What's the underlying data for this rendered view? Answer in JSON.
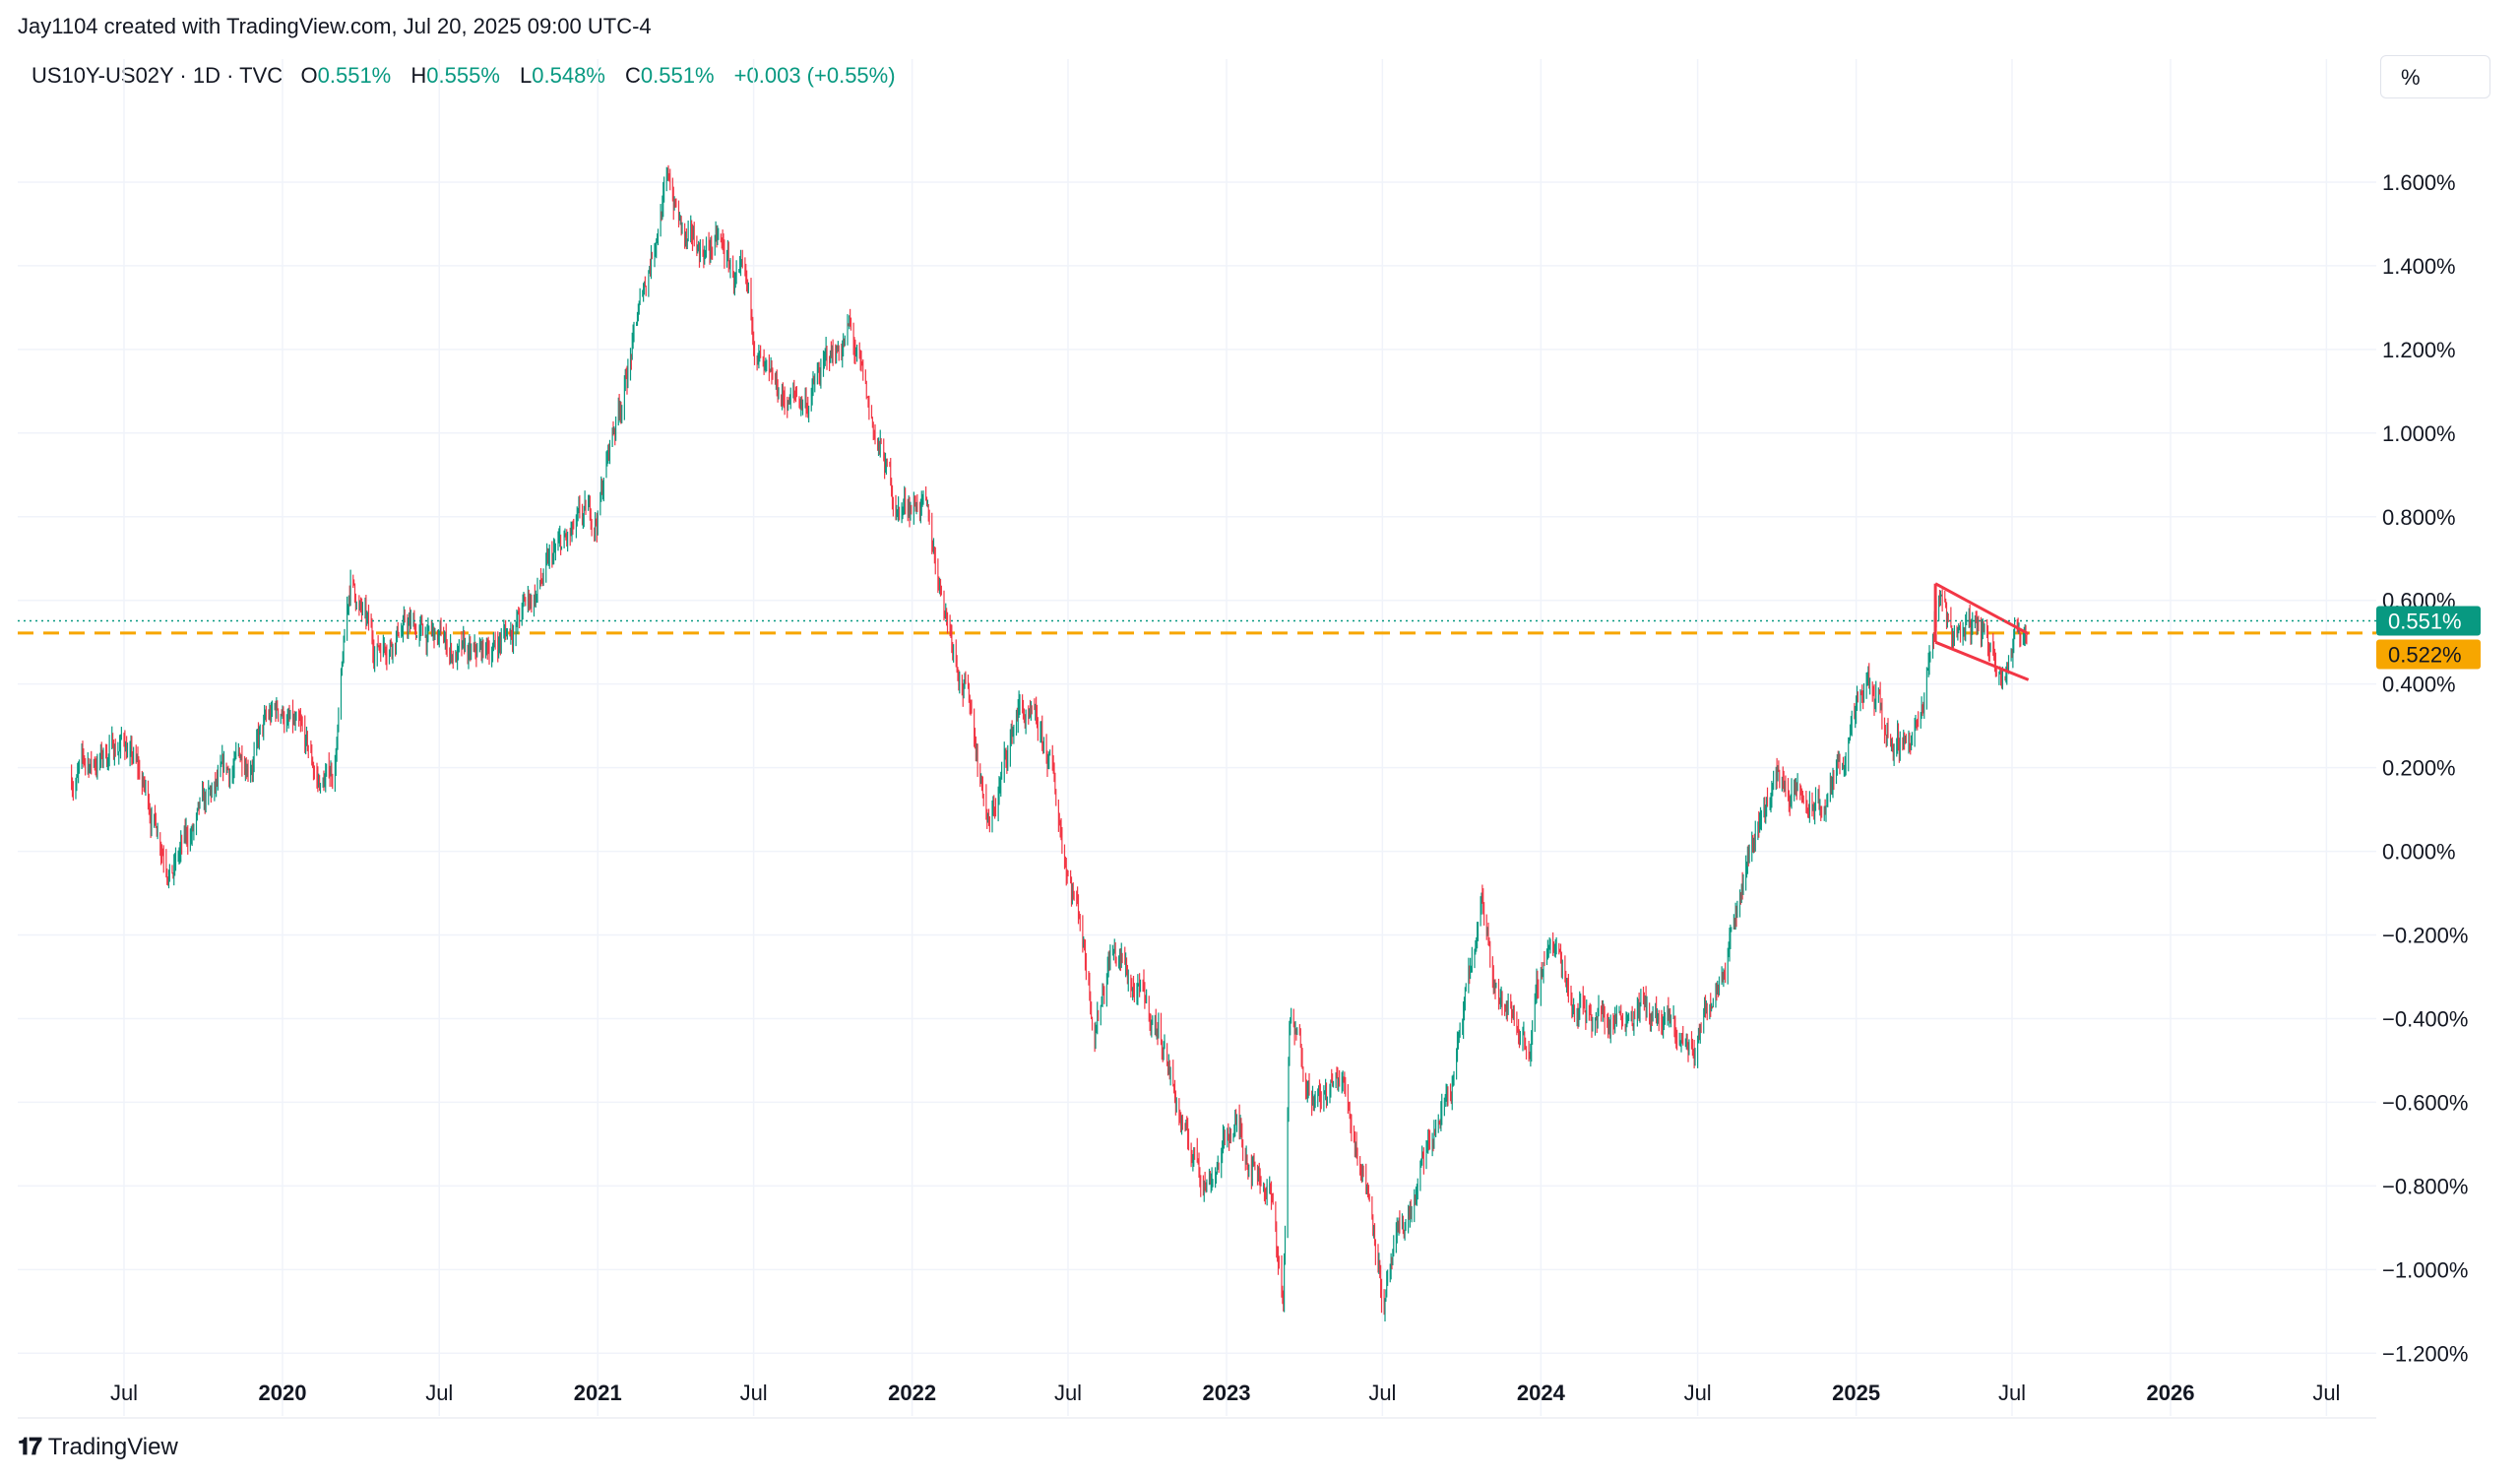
{
  "header": {
    "credit": "Jay1104 created with TradingView.com, Jul 20, 2025 09:00 UTC-4"
  },
  "legend": {
    "symbol": "US10Y-US02Y · 1D · TVC",
    "o_label": "O",
    "o_value": "0.551%",
    "h_label": "H",
    "h_value": "0.555%",
    "l_label": "L",
    "l_value": "0.548%",
    "c_label": "C",
    "c_value": "0.551%",
    "change": "+0.003 (+0.55%)"
  },
  "scale_button": {
    "label": "%"
  },
  "footer": {
    "brand": "TradingView"
  },
  "colors": {
    "up": "#089981",
    "down": "#f23645",
    "grid": "#f0f3fa",
    "dashed_level": "#f7a600",
    "pattern_lines": "#f23645"
  },
  "chart_data": {
    "type": "candlestick",
    "symbol": "US10Y-US02Y",
    "unit": "%",
    "ylim": [
      -1.35,
      1.8
    ],
    "y_ticks": [
      1.6,
      1.4,
      1.2,
      1.0,
      0.8,
      0.6,
      0.4,
      0.2,
      0.0,
      -0.2,
      -0.4,
      -0.6,
      -0.8,
      -1.0,
      -1.2
    ],
    "y_tick_labels": [
      "1.600%",
      "1.400%",
      "1.200%",
      "1.000%",
      "0.800%",
      "0.600%",
      "0.400%",
      "0.200%",
      "0.000%",
      "−0.200%",
      "−0.400%",
      "−0.600%",
      "−0.800%",
      "−1.000%",
      "−1.200%"
    ],
    "x_ticks": [
      {
        "label": "Jul",
        "date": "2019-07-01",
        "major": false
      },
      {
        "label": "2020",
        "date": "2020-01-01",
        "major": true
      },
      {
        "label": "Jul",
        "date": "2020-07-01",
        "major": false
      },
      {
        "label": "2021",
        "date": "2021-01-01",
        "major": true
      },
      {
        "label": "Jul",
        "date": "2021-07-01",
        "major": false
      },
      {
        "label": "2022",
        "date": "2022-01-01",
        "major": true
      },
      {
        "label": "Jul",
        "date": "2022-07-01",
        "major": false
      },
      {
        "label": "2023",
        "date": "2023-01-01",
        "major": true
      },
      {
        "label": "Jul",
        "date": "2023-07-01",
        "major": false
      },
      {
        "label": "2024",
        "date": "2024-01-01",
        "major": true
      },
      {
        "label": "Jul",
        "date": "2024-07-01",
        "major": false
      },
      {
        "label": "2025",
        "date": "2025-01-01",
        "major": true
      },
      {
        "label": "Jul",
        "date": "2025-07-01",
        "major": false
      },
      {
        "label": "2026",
        "date": "2026-01-01",
        "major": true
      },
      {
        "label": "Jul",
        "date": "2026-07-01",
        "major": false
      }
    ],
    "price_path": [
      [
        "2019-05-01",
        0.18
      ],
      [
        "2019-06-01",
        0.22
      ],
      [
        "2019-07-01",
        0.27
      ],
      [
        "2019-08-01",
        0.1
      ],
      [
        "2019-08-27",
        -0.03
      ],
      [
        "2019-10-01",
        0.08
      ],
      [
        "2019-11-15",
        0.22
      ],
      [
        "2019-12-31",
        0.34
      ],
      [
        "2020-02-15",
        0.15
      ],
      [
        "2020-03-01",
        0.2
      ],
      [
        "2020-03-20",
        0.65
      ],
      [
        "2020-04-15",
        0.48
      ],
      [
        "2020-05-15",
        0.55
      ],
      [
        "2020-06-10",
        0.52
      ],
      [
        "2020-07-15",
        0.48
      ],
      [
        "2020-08-10",
        0.44
      ],
      [
        "2020-09-15",
        0.52
      ],
      [
        "2020-10-15",
        0.6
      ],
      [
        "2020-11-15",
        0.7
      ],
      [
        "2020-12-31",
        0.8
      ],
      [
        "2021-01-15",
        0.97
      ],
      [
        "2021-02-15",
        1.25
      ],
      [
        "2021-03-15",
        1.55
      ],
      [
        "2021-03-25",
        1.6
      ],
      [
        "2021-04-15",
        1.43
      ],
      [
        "2021-05-20",
        1.45
      ],
      [
        "2021-06-20",
        1.32
      ],
      [
        "2021-07-20",
        1.07
      ],
      [
        "2021-09-01",
        1.08
      ],
      [
        "2021-10-20",
        1.25
      ],
      [
        "2021-11-10",
        1.05
      ],
      [
        "2021-12-15",
        0.82
      ],
      [
        "2022-01-10",
        0.85
      ],
      [
        "2022-02-10",
        0.58
      ],
      [
        "2022-03-10",
        0.35
      ],
      [
        "2022-04-01",
        0.05
      ],
      [
        "2022-05-05",
        0.35
      ],
      [
        "2022-06-10",
        0.2
      ],
      [
        "2022-06-25",
        0.02
      ],
      [
        "2022-07-15",
        -0.15
      ],
      [
        "2022-08-01",
        -0.4
      ],
      [
        "2022-08-20",
        -0.22
      ],
      [
        "2022-09-20",
        -0.35
      ],
      [
        "2022-10-20",
        -0.45
      ],
      [
        "2022-11-15",
        -0.7
      ],
      [
        "2022-12-10",
        -0.78
      ],
      [
        "2023-01-10",
        -0.65
      ],
      [
        "2023-02-20",
        -0.8
      ],
      [
        "2023-03-08",
        -1.08
      ],
      [
        "2023-03-15",
        -0.42
      ],
      [
        "2023-04-20",
        -0.6
      ],
      [
        "2023-05-15",
        -0.55
      ],
      [
        "2023-06-20",
        -0.85
      ],
      [
        "2023-07-03",
        -1.08
      ],
      [
        "2023-07-20",
        -0.95
      ],
      [
        "2023-08-20",
        -0.75
      ],
      [
        "2023-09-20",
        -0.55
      ],
      [
        "2023-10-25",
        -0.15
      ],
      [
        "2023-11-20",
        -0.38
      ],
      [
        "2023-12-20",
        -0.45
      ],
      [
        "2024-01-10",
        -0.2
      ],
      [
        "2024-02-10",
        -0.35
      ],
      [
        "2024-03-20",
        -0.4
      ],
      [
        "2024-04-20",
        -0.35
      ],
      [
        "2024-05-20",
        -0.42
      ],
      [
        "2024-06-28",
        -0.48
      ],
      [
        "2024-08-10",
        -0.15
      ],
      [
        "2024-09-10",
        0.08
      ],
      [
        "2024-10-01",
        0.18
      ],
      [
        "2024-11-05",
        0.1
      ],
      [
        "2024-11-25",
        0.1
      ],
      [
        "2024-12-20",
        0.25
      ],
      [
        "2025-01-15",
        0.38
      ],
      [
        "2025-02-15",
        0.25
      ],
      [
        "2025-03-20",
        0.32
      ],
      [
        "2025-04-08",
        0.62
      ],
      [
        "2025-04-25",
        0.52
      ],
      [
        "2025-05-20",
        0.55
      ],
      [
        "2025-06-15",
        0.46
      ],
      [
        "2025-07-01",
        0.5
      ],
      [
        "2025-07-18",
        0.551
      ]
    ],
    "annotations": {
      "last_price": 0.551,
      "last_price_label": "0.551%",
      "horizontal_level": 0.522,
      "horizontal_level_label": "0.522%",
      "pattern_upper_line": [
        [
          "2025-04-03",
          0.64
        ],
        [
          "2025-07-20",
          0.52
        ]
      ],
      "pattern_lower_line": [
        [
          "2025-04-03",
          0.5
        ],
        [
          "2025-07-20",
          0.41
        ]
      ],
      "pattern_left_edge": [
        [
          "2025-04-03",
          0.64
        ],
        [
          "2025-04-03",
          0.5
        ]
      ]
    }
  }
}
